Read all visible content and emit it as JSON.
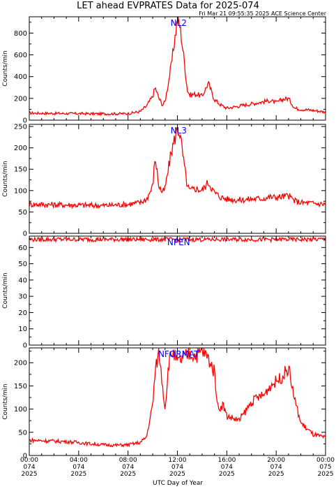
{
  "title": "LET ahead EVPRATES Data for 2025-074",
  "timestamp": "Fri Mar 21 09:55:35 2025 ACE Science Center",
  "xlabel": "UTC Day of Year",
  "colors": {
    "trace": "#ff0000",
    "panel_label": "#0000ff",
    "axis": "#000000"
  },
  "x_ticks": [
    {
      "time": "00:00",
      "doy": "074",
      "year": "2025"
    },
    {
      "time": "04:00",
      "doy": "074",
      "year": "2025"
    },
    {
      "time": "08:00",
      "doy": "074",
      "year": "2025"
    },
    {
      "time": "12:00",
      "doy": "074",
      "year": "2025"
    },
    {
      "time": "16:00",
      "doy": "074",
      "year": "2025"
    },
    {
      "time": "20:00",
      "doy": "074",
      "year": "2025"
    },
    {
      "time": "00:00",
      "doy": "075",
      "year": "2025"
    }
  ],
  "chart_data": [
    {
      "type": "line",
      "name": "NL2",
      "ylabel": "Counts/min",
      "ylim": [
        0,
        950
      ],
      "yticks": [
        0,
        200,
        400,
        600,
        800
      ],
      "x": [
        0,
        2,
        4,
        6,
        8,
        9,
        9.5,
        10,
        10.2,
        10.5,
        10.8,
        11,
        11.5,
        12,
        12.2,
        12.5,
        12.8,
        13,
        13.5,
        14,
        14.5,
        15,
        15.5,
        16,
        17,
        18,
        19,
        19.5,
        20,
        20.5,
        21,
        21.5,
        22,
        23,
        24
      ],
      "values": [
        65,
        62,
        60,
        58,
        60,
        80,
        130,
        220,
        300,
        200,
        140,
        170,
        500,
        930,
        870,
        600,
        280,
        230,
        240,
        220,
        340,
        190,
        140,
        110,
        130,
        150,
        170,
        180,
        160,
        190,
        200,
        110,
        100,
        90,
        75
      ]
    },
    {
      "type": "line",
      "name": "NL3",
      "ylabel": "Counts/min",
      "ylim": [
        0,
        255
      ],
      "yticks": [
        0,
        50,
        100,
        150,
        200,
        250
      ],
      "x": [
        0,
        2,
        4,
        6,
        8,
        9,
        9.5,
        10,
        10.2,
        10.5,
        10.8,
        11,
        11.5,
        12,
        12.2,
        12.5,
        12.8,
        13,
        13.5,
        14,
        14.5,
        15,
        15.5,
        16,
        17,
        18,
        19,
        19.5,
        20,
        20.5,
        21,
        21.5,
        22,
        23,
        24
      ],
      "values": [
        68,
        67,
        66,
        65,
        68,
        72,
        80,
        110,
        180,
        110,
        95,
        105,
        190,
        245,
        235,
        170,
        110,
        100,
        105,
        100,
        120,
        95,
        85,
        80,
        78,
        80,
        82,
        85,
        84,
        86,
        88,
        76,
        72,
        70,
        68
      ]
    },
    {
      "type": "line",
      "name": "NPEN",
      "ylabel": "Counts/min",
      "ylim": [
        0,
        67
      ],
      "yticks": [
        0,
        10,
        20,
        30,
        40,
        50,
        60
      ],
      "x": [
        0,
        2,
        4,
        6,
        8,
        10,
        12,
        14,
        16,
        18,
        20,
        22,
        24
      ],
      "values": [
        65,
        65,
        65,
        65,
        65,
        65,
        65,
        65,
        65,
        65,
        65,
        65,
        65
      ]
    },
    {
      "type": "line",
      "name": "NFORMAT",
      "ylabel": "Counts/min",
      "ylim": [
        0,
        232
      ],
      "yticks": [
        0,
        50,
        100,
        150,
        200
      ],
      "x": [
        0,
        1,
        2,
        3,
        4,
        5,
        6,
        7,
        8,
        9,
        9.5,
        10,
        10.2,
        10.5,
        10.8,
        11,
        11.3,
        11.6,
        12,
        12.5,
        13,
        13.5,
        14,
        14.5,
        15,
        15.3,
        15.7,
        16,
        17,
        18,
        18.5,
        19,
        19.5,
        20,
        20.5,
        21,
        21.5,
        22,
        23,
        24
      ],
      "values": [
        33,
        32,
        31,
        30,
        28,
        25,
        23,
        22,
        23,
        28,
        40,
        110,
        180,
        225,
        150,
        100,
        200,
        225,
        200,
        210,
        220,
        215,
        225,
        210,
        180,
        100,
        110,
        85,
        75,
        115,
        125,
        130,
        150,
        160,
        170,
        190,
        120,
        70,
        45,
        38
      ]
    }
  ]
}
